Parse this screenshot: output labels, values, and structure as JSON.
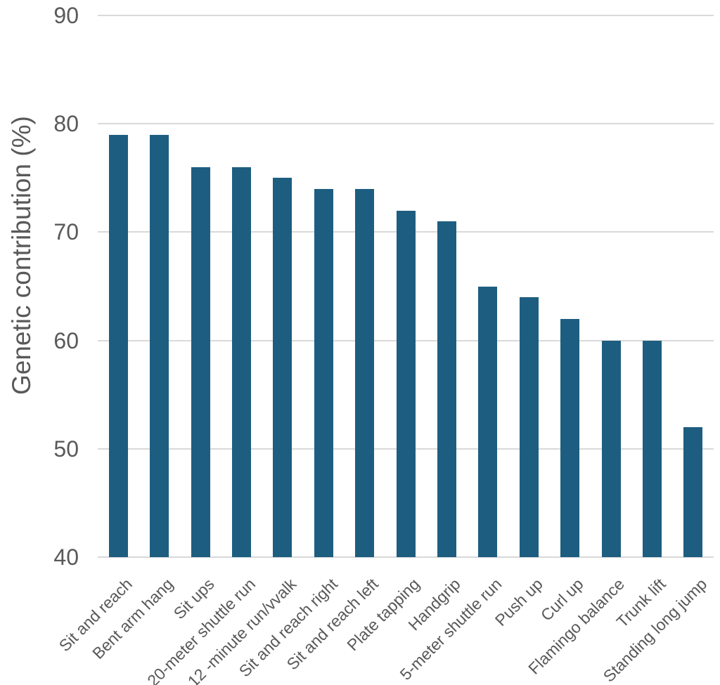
{
  "chart_data": {
    "type": "bar",
    "title": "",
    "xlabel": "",
    "ylabel": "Genetic contribution (%)",
    "categories": [
      "Sit and reach",
      "Bent arm hang",
      "Sit ups",
      "20-meter shuttle run",
      "12 -minute run/vvalk",
      "Sit and reach right",
      "Sit and reach left",
      "Plate tapping",
      "Handgrip",
      "5-meter shuttle run",
      "Push up",
      "Curl up",
      "Flamingo balance",
      "Trunk lift",
      "Standing long jump"
    ],
    "values": [
      79,
      79,
      76,
      76,
      75,
      74,
      74,
      72,
      71,
      65,
      64,
      62,
      60,
      60,
      52
    ],
    "ylim": [
      40,
      90
    ],
    "yticks": [
      40,
      50,
      60,
      70,
      80,
      90
    ],
    "grid": true,
    "legend": false,
    "bar_color": "#1d5e80",
    "grid_color": "#d9d9d9",
    "text_color": "#595959"
  }
}
